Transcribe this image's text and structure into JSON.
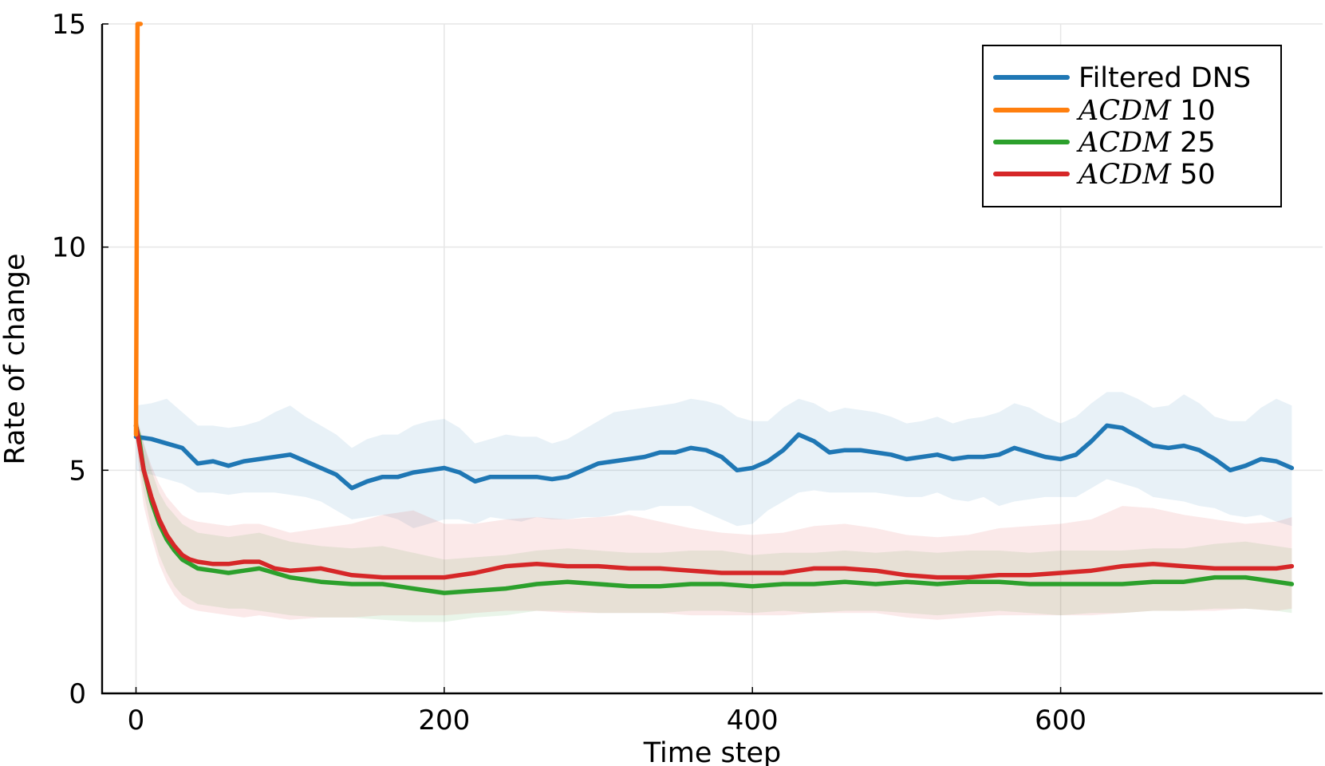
{
  "chart_data": {
    "type": "line",
    "xlabel": "Time step",
    "ylabel": "Rate of change",
    "xlim": [
      -22,
      770
    ],
    "ylim": [
      0,
      15
    ],
    "xticks": [
      0,
      200,
      400,
      600
    ],
    "xtick_labels": [
      "0",
      "200",
      "400",
      "600"
    ],
    "yticks": [
      0,
      5,
      10,
      15
    ],
    "ytick_labels": [
      "0",
      "5",
      "10",
      "15"
    ],
    "grid": true,
    "legend_position": "top-right",
    "series": [
      {
        "name": "Filtered DNS",
        "legend_math": "",
        "legend_num": "",
        "color": "#1f77b4",
        "x": [
          0,
          10,
          20,
          30,
          40,
          50,
          60,
          70,
          80,
          90,
          100,
          110,
          120,
          130,
          140,
          150,
          160,
          170,
          180,
          190,
          200,
          210,
          220,
          230,
          240,
          250,
          260,
          270,
          280,
          290,
          300,
          310,
          320,
          330,
          340,
          350,
          360,
          370,
          380,
          390,
          400,
          410,
          420,
          430,
          440,
          450,
          460,
          470,
          480,
          490,
          500,
          510,
          520,
          530,
          540,
          550,
          560,
          570,
          580,
          590,
          600,
          610,
          620,
          630,
          640,
          650,
          660,
          670,
          680,
          690,
          700,
          710,
          720,
          730,
          740,
          750
        ],
        "y": [
          5.75,
          5.7,
          5.6,
          5.5,
          5.15,
          5.2,
          5.1,
          5.2,
          5.25,
          5.3,
          5.35,
          5.2,
          5.05,
          4.9,
          4.6,
          4.75,
          4.85,
          4.85,
          4.95,
          5.0,
          5.05,
          4.95,
          4.75,
          4.85,
          4.85,
          4.85,
          4.85,
          4.8,
          4.85,
          5.0,
          5.15,
          5.2,
          5.25,
          5.3,
          5.4,
          5.4,
          5.5,
          5.45,
          5.3,
          5.0,
          5.05,
          5.2,
          5.45,
          5.8,
          5.65,
          5.4,
          5.45,
          5.45,
          5.4,
          5.35,
          5.25,
          5.3,
          5.35,
          5.25,
          5.3,
          5.3,
          5.35,
          5.5,
          5.4,
          5.3,
          5.25,
          5.35,
          5.65,
          6.0,
          5.95,
          5.75,
          5.55,
          5.5,
          5.55,
          5.45,
          5.25,
          5.0,
          5.1,
          5.25,
          5.2,
          5.05
        ],
        "band_lower": [
          5.0,
          4.9,
          4.8,
          4.7,
          4.5,
          4.5,
          4.45,
          4.5,
          4.5,
          4.5,
          4.45,
          4.4,
          4.3,
          4.1,
          3.9,
          3.95,
          4.0,
          3.9,
          3.7,
          3.8,
          3.9,
          3.9,
          3.8,
          3.95,
          3.9,
          3.85,
          3.95,
          3.9,
          3.9,
          3.95,
          3.95,
          4.0,
          4.1,
          4.1,
          4.2,
          4.2,
          4.2,
          4.05,
          3.9,
          3.75,
          3.8,
          4.1,
          4.3,
          4.5,
          4.55,
          4.5,
          4.5,
          4.5,
          4.5,
          4.45,
          4.4,
          4.4,
          4.5,
          4.35,
          4.3,
          4.4,
          4.2,
          4.3,
          4.35,
          4.4,
          4.4,
          4.4,
          4.6,
          4.8,
          4.7,
          4.6,
          4.4,
          4.35,
          4.3,
          4.2,
          4.15,
          4.0,
          3.95,
          4.0,
          3.85,
          3.75
        ],
        "band_upper": [
          6.45,
          6.5,
          6.6,
          6.3,
          6.0,
          6.0,
          5.95,
          6.0,
          6.1,
          6.3,
          6.45,
          6.2,
          6.0,
          5.8,
          5.5,
          5.7,
          5.8,
          5.8,
          6.0,
          6.1,
          6.15,
          5.95,
          5.6,
          5.7,
          5.8,
          5.75,
          5.75,
          5.6,
          5.7,
          5.9,
          6.1,
          6.3,
          6.35,
          6.4,
          6.45,
          6.5,
          6.6,
          6.55,
          6.45,
          6.2,
          6.1,
          6.1,
          6.4,
          6.6,
          6.5,
          6.3,
          6.4,
          6.35,
          6.3,
          6.2,
          6.05,
          6.1,
          6.2,
          6.05,
          6.15,
          6.2,
          6.3,
          6.5,
          6.4,
          6.2,
          6.05,
          6.2,
          6.5,
          6.75,
          6.75,
          6.6,
          6.4,
          6.45,
          6.7,
          6.5,
          6.2,
          6.1,
          6.1,
          6.4,
          6.6,
          6.45
        ]
      },
      {
        "name": "ACDM 10",
        "legend_math": "ACDM",
        "legend_num": "10",
        "color": "#ff7f0e",
        "x": [
          0,
          1,
          2,
          3
        ],
        "y": [
          5.8,
          15.0,
          15.0,
          15.0
        ]
      },
      {
        "name": "ACDM 25",
        "legend_math": "ACDM",
        "legend_num": "25",
        "color": "#2ca02c",
        "x": [
          0,
          2,
          5,
          10,
          15,
          20,
          25,
          30,
          35,
          40,
          50,
          60,
          70,
          80,
          90,
          100,
          120,
          140,
          160,
          180,
          200,
          220,
          240,
          260,
          280,
          300,
          320,
          340,
          360,
          380,
          400,
          420,
          440,
          460,
          480,
          500,
          520,
          540,
          560,
          580,
          600,
          620,
          640,
          660,
          680,
          700,
          720,
          740,
          750
        ],
        "y": [
          6.0,
          5.7,
          5.0,
          4.3,
          3.8,
          3.45,
          3.2,
          3.0,
          2.9,
          2.8,
          2.75,
          2.7,
          2.75,
          2.8,
          2.7,
          2.6,
          2.5,
          2.45,
          2.45,
          2.35,
          2.25,
          2.3,
          2.35,
          2.45,
          2.5,
          2.45,
          2.4,
          2.4,
          2.45,
          2.45,
          2.4,
          2.45,
          2.45,
          2.5,
          2.45,
          2.5,
          2.45,
          2.5,
          2.5,
          2.45,
          2.45,
          2.45,
          2.45,
          2.5,
          2.5,
          2.6,
          2.6,
          2.5,
          2.45
        ],
        "band_lower": [
          5.8,
          5.2,
          4.5,
          3.7,
          3.1,
          2.7,
          2.4,
          2.2,
          2.1,
          2.0,
          1.95,
          1.9,
          1.9,
          1.85,
          1.8,
          1.75,
          1.7,
          1.7,
          1.65,
          1.6,
          1.6,
          1.7,
          1.75,
          1.85,
          1.85,
          1.8,
          1.8,
          1.8,
          1.85,
          1.85,
          1.8,
          1.85,
          1.8,
          1.85,
          1.85,
          1.8,
          1.75,
          1.8,
          1.85,
          1.8,
          1.75,
          1.8,
          1.8,
          1.85,
          1.85,
          1.9,
          1.9,
          1.85,
          1.8
        ],
        "band_upper": [
          6.2,
          6.0,
          5.6,
          5.0,
          4.5,
          4.2,
          4.0,
          3.8,
          3.7,
          3.6,
          3.55,
          3.5,
          3.55,
          3.6,
          3.5,
          3.4,
          3.3,
          3.25,
          3.3,
          3.15,
          3.0,
          3.05,
          3.1,
          3.2,
          3.25,
          3.2,
          3.15,
          3.15,
          3.2,
          3.2,
          3.1,
          3.15,
          3.15,
          3.2,
          3.15,
          3.2,
          3.15,
          3.2,
          3.2,
          3.15,
          3.2,
          3.2,
          3.2,
          3.25,
          3.25,
          3.35,
          3.4,
          3.3,
          3.25
        ]
      },
      {
        "name": "ACDM 50",
        "legend_math": "ACDM",
        "legend_num": "50",
        "color": "#d62728",
        "x": [
          0,
          2,
          5,
          10,
          15,
          20,
          25,
          30,
          35,
          40,
          50,
          60,
          70,
          80,
          90,
          100,
          120,
          140,
          160,
          180,
          200,
          220,
          240,
          260,
          280,
          300,
          320,
          340,
          360,
          380,
          400,
          420,
          440,
          460,
          480,
          500,
          520,
          540,
          560,
          580,
          600,
          620,
          640,
          660,
          680,
          700,
          720,
          740,
          750
        ],
        "y": [
          6.0,
          5.6,
          5.0,
          4.4,
          3.9,
          3.55,
          3.3,
          3.1,
          3.0,
          2.95,
          2.9,
          2.9,
          2.95,
          2.95,
          2.8,
          2.75,
          2.8,
          2.65,
          2.6,
          2.6,
          2.6,
          2.7,
          2.85,
          2.9,
          2.85,
          2.85,
          2.8,
          2.8,
          2.75,
          2.7,
          2.7,
          2.7,
          2.8,
          2.8,
          2.75,
          2.65,
          2.6,
          2.6,
          2.65,
          2.65,
          2.7,
          2.75,
          2.85,
          2.9,
          2.85,
          2.8,
          2.8,
          2.8,
          2.85
        ],
        "band_lower": [
          5.7,
          5.0,
          4.2,
          3.5,
          2.9,
          2.5,
          2.2,
          2.0,
          1.9,
          1.85,
          1.8,
          1.75,
          1.7,
          1.75,
          1.7,
          1.65,
          1.7,
          1.7,
          1.75,
          1.75,
          1.75,
          1.8,
          1.85,
          1.85,
          1.8,
          1.8,
          1.8,
          1.8,
          1.75,
          1.75,
          1.75,
          1.75,
          1.8,
          1.8,
          1.8,
          1.7,
          1.65,
          1.7,
          1.75,
          1.75,
          1.75,
          1.75,
          1.8,
          1.85,
          1.85,
          1.85,
          1.9,
          1.85,
          1.9
        ],
        "band_upper": [
          6.3,
          6.0,
          5.6,
          5.1,
          4.7,
          4.4,
          4.2,
          4.0,
          3.9,
          3.85,
          3.8,
          3.75,
          3.8,
          3.8,
          3.7,
          3.6,
          3.7,
          3.8,
          4.0,
          4.1,
          3.8,
          3.8,
          3.9,
          3.95,
          3.9,
          3.95,
          4.0,
          3.85,
          3.7,
          3.6,
          3.55,
          3.6,
          3.75,
          3.8,
          3.7,
          3.55,
          3.5,
          3.55,
          3.7,
          3.75,
          3.8,
          3.9,
          4.2,
          4.15,
          4.0,
          3.9,
          3.8,
          3.85,
          3.95
        ]
      }
    ]
  }
}
